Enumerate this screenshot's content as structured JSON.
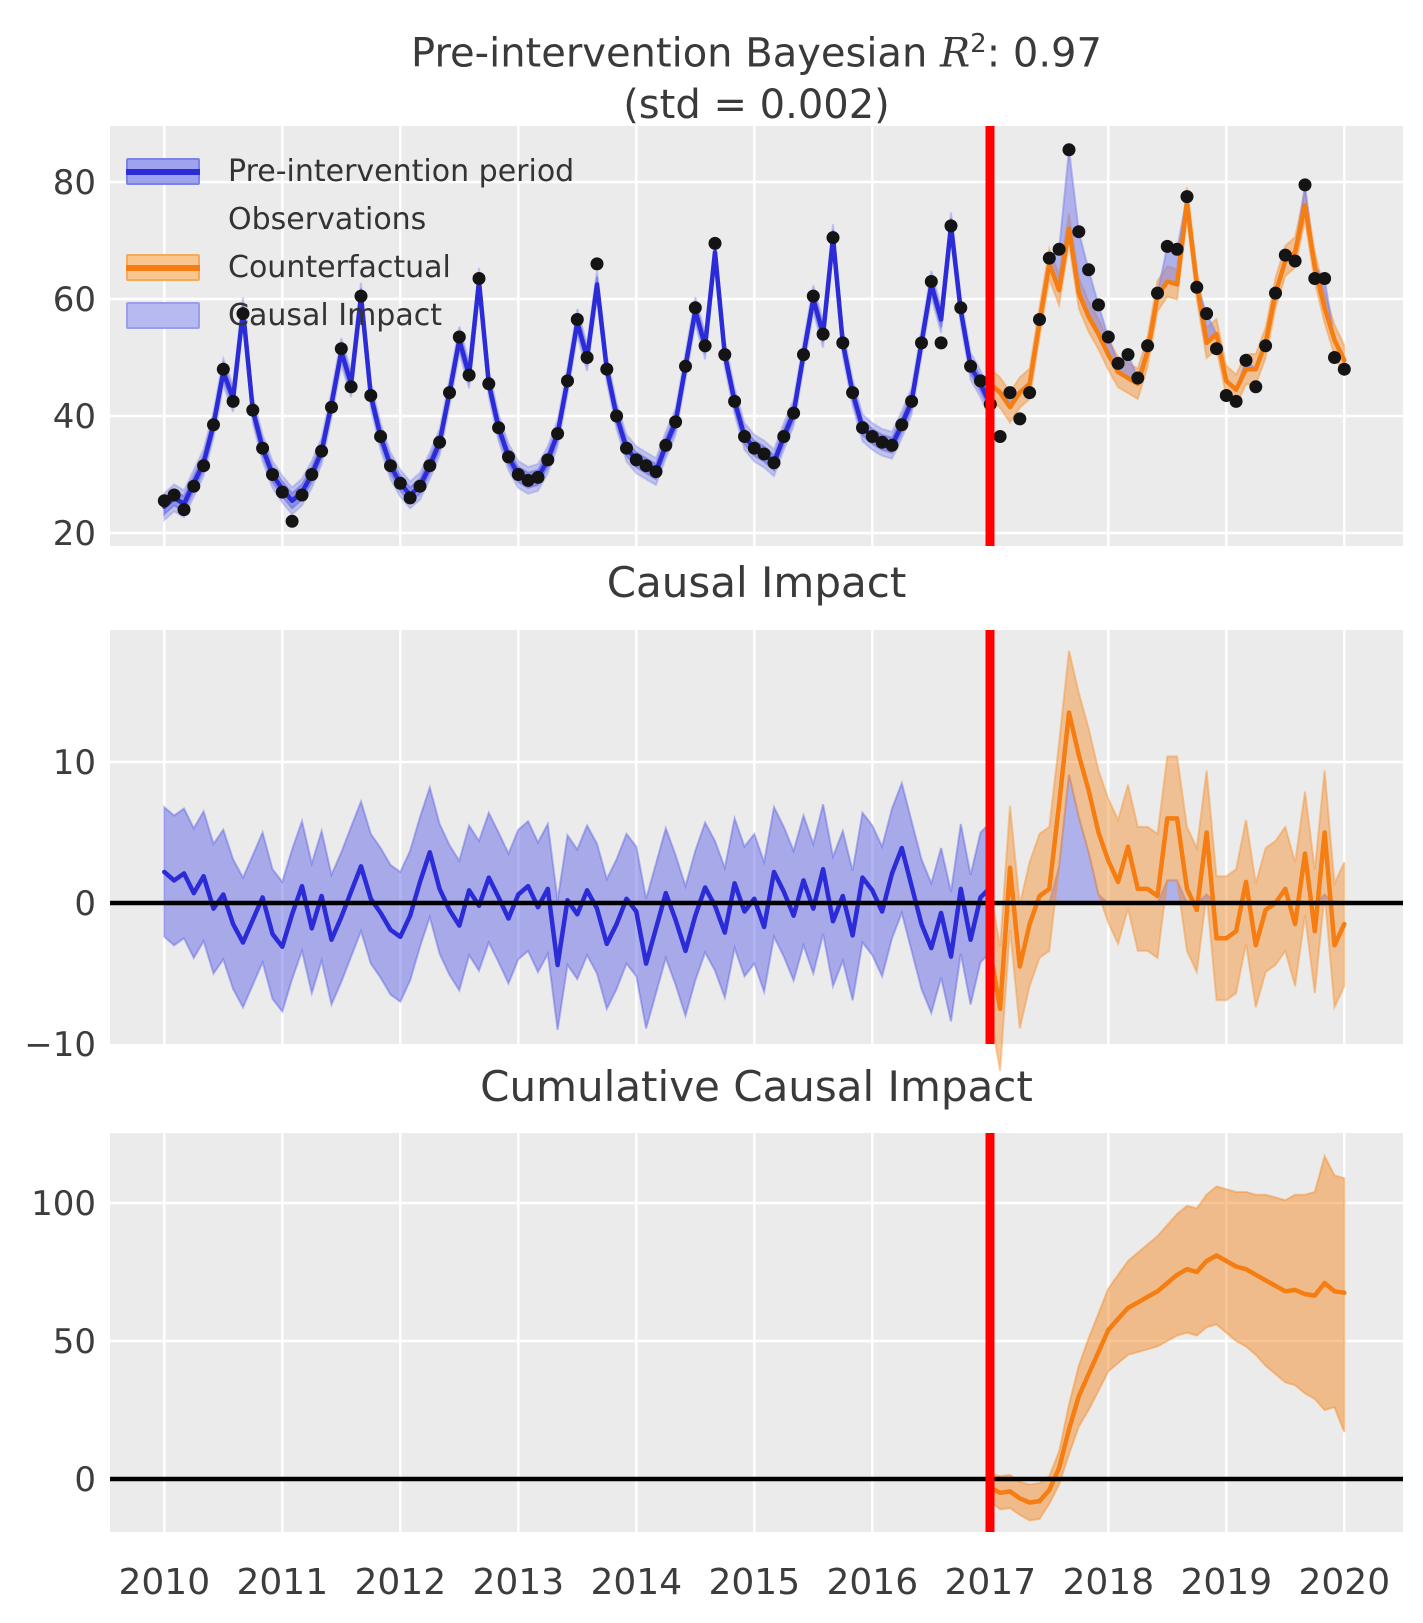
{
  "titles": {
    "top_prefix": "Pre-intervention Bayesian ",
    "top_r": "R",
    "top_exp": "2",
    "top_suffix": ": 0.97",
    "top_line2": "(std = 0.002)",
    "middle": "Causal Impact",
    "bottom": "Cumulative Causal Impact"
  },
  "legend": {
    "items": [
      {
        "label": "Pre-intervention period",
        "swatch": "blue-band-with-line"
      },
      {
        "label": "Observations",
        "swatch": "black-dot"
      },
      {
        "label": "Counterfactual",
        "swatch": "orange-band-with-line"
      },
      {
        "label": "Causal Impact",
        "swatch": "light-blue-band"
      }
    ]
  },
  "colors": {
    "background": "#ebebeb",
    "grid": "#ffffff",
    "text": "#3d3d3d",
    "blue_line": "#2b2bd8",
    "blue_band": "#5558e4",
    "light_blue_fill": "#7b82ea",
    "orange_line": "#f57d11",
    "orange_band": "#f58c2a",
    "observation_dot": "#141414",
    "intervention_line": "#ff0000",
    "zero_line": "#000000"
  },
  "x_axis": {
    "labels": [
      "2010",
      "2011",
      "2012",
      "2013",
      "2014",
      "2015",
      "2016",
      "2017",
      "2018",
      "2019",
      "2020"
    ],
    "years": [
      2010,
      2011,
      2012,
      2013,
      2014,
      2015,
      2016,
      2017,
      2018,
      2019,
      2020
    ],
    "intervention_year": 2017
  },
  "chart_data": [
    {
      "type": "line",
      "title": "Pre-intervention Bayesian R²: 0.97 (std = 0.002)",
      "x_start_year": 2010,
      "x_step_months": 1,
      "intervention_year": 2017,
      "ylim": [
        18,
        89
      ],
      "y_tick_values": [
        20,
        40,
        60,
        80
      ],
      "y_tick_labels": [
        "20",
        "40",
        "60",
        "80"
      ],
      "legend_position": "upper-left",
      "series": {
        "observations": [
          25.5,
          26.5,
          24,
          28,
          31.5,
          38.5,
          48,
          42.5,
          57.5,
          41,
          34.5,
          30,
          27,
          22,
          26.5,
          30,
          34,
          41.5,
          51.5,
          45,
          60.5,
          43.5,
          36.5,
          31.5,
          28.5,
          26,
          28,
          31.5,
          35.5,
          44,
          53.5,
          47,
          63.5,
          45.5,
          38,
          33,
          30,
          29,
          29.5,
          32.5,
          37,
          46,
          56.5,
          50,
          66,
          48,
          40,
          34.5,
          32.5,
          31.5,
          30.5,
          35,
          39,
          48.5,
          58.5,
          52,
          69.5,
          50.5,
          42.5,
          36.5,
          34.5,
          33.5,
          32,
          36.5,
          40.5,
          50.5,
          60.5,
          54,
          70.5,
          52.5,
          44,
          38,
          36.5,
          35.5,
          35,
          38.5,
          42.5,
          52.5,
          63,
          52.5,
          72.5,
          58.5,
          48.5,
          46,
          42,
          36.5,
          44,
          39.5,
          44,
          56.5,
          67,
          68.5,
          85.5,
          71.5,
          65,
          59,
          53.5,
          49,
          50.5,
          46.5,
          52,
          61,
          69,
          68.5,
          77.5,
          62,
          57.5,
          51.5,
          43.5,
          42.5,
          49.5,
          45,
          52,
          61,
          67.5,
          66.5,
          79.5,
          63.5,
          63.5,
          50,
          48
        ],
        "pre_intervention_mean": [
          24.5,
          26,
          25,
          28.5,
          32,
          38.5,
          47.5,
          43,
          58,
          41,
          34.5,
          30,
          27.5,
          25.5,
          27,
          30,
          34,
          42,
          51,
          45.5,
          60.5,
          43.5,
          36.5,
          31.5,
          28.5,
          26.5,
          28,
          31.5,
          35.5,
          44,
          53,
          47,
          63,
          45.5,
          38,
          33,
          30,
          29,
          29.5,
          32.5,
          37,
          46,
          56,
          50,
          62.5,
          48,
          40,
          34.5,
          32.5,
          31.5,
          30.5,
          35,
          39,
          48.5,
          58,
          52,
          68,
          50.5,
          42.5,
          36.5,
          34.5,
          33.5,
          32,
          36.5,
          40.5,
          50.5,
          60,
          54,
          70.5,
          52.5,
          44,
          38,
          36.5,
          35.5,
          35,
          38.5,
          42.5,
          52.5,
          62.5,
          56.5,
          72.5,
          58,
          48.5,
          45.5,
          42
        ],
        "counterfactual_mean": [
          45.5,
          44,
          41.5,
          44,
          45.5,
          56,
          66,
          61.5,
          72,
          61,
          57,
          54,
          50.5,
          47.5,
          46.5,
          45.5,
          51,
          60.5,
          63,
          62.5,
          76.5,
          62.5,
          52.5,
          54,
          46,
          44.5,
          48,
          48,
          52.5,
          61,
          66.5,
          68,
          76,
          65.5,
          58.5,
          53,
          49.5
        ]
      },
      "band_halfwidths": {
        "pre_inner": 1.3,
        "pre_outer": 2.3,
        "counterfactual": 2.6
      }
    },
    {
      "type": "line",
      "title": "Causal Impact",
      "x_start_year": 2010,
      "x_step_months": 1,
      "intervention_year": 2017,
      "ylim": [
        -10,
        19
      ],
      "y_tick_values": [
        -10,
        0,
        10
      ],
      "y_tick_labels": [
        "−10",
        "0",
        "10"
      ],
      "zero_line": true,
      "series": {
        "pre_impact": [
          2.2,
          1.6,
          2.1,
          0.7,
          1.9,
          -0.4,
          0.6,
          -1.5,
          -2.8,
          -1.2,
          0.4,
          -2.2,
          -3.1,
          -0.8,
          1.2,
          -1.8,
          0.5,
          -2.6,
          -1.0,
          0.8,
          2.6,
          0.3,
          -0.7,
          -1.9,
          -2.4,
          -0.9,
          1.5,
          3.6,
          1.0,
          -0.5,
          -1.6,
          0.9,
          -0.2,
          1.8,
          0.4,
          -1.1,
          0.6,
          1.2,
          -0.3,
          1.0,
          -4.4,
          0.2,
          -0.8,
          0.9,
          -0.4,
          -2.9,
          -1.5,
          0.3,
          -0.6,
          -4.3,
          -1.8,
          0.7,
          -1.2,
          -3.4,
          -0.9,
          1.1,
          -0.2,
          -2.1,
          1.4,
          -0.6,
          0.3,
          -1.7,
          2.2,
          0.8,
          -0.9,
          1.6,
          -0.4,
          2.4,
          -1.3,
          0.5,
          -2.3,
          1.8,
          0.9,
          -0.6,
          2.1,
          3.9,
          1.2,
          -1.5,
          -3.2,
          -0.7,
          -3.8,
          1.0,
          -2.6,
          0.4,
          1.1
        ],
        "post_impact": [
          -3.5,
          -7.5,
          2.5,
          -4.5,
          -1.5,
          0.5,
          1,
          7,
          13.5,
          10.5,
          8,
          5,
          3,
          1.5,
          4,
          1,
          1,
          0.5,
          6,
          6,
          1,
          -0.5,
          5,
          -2.5,
          -2.5,
          -2,
          1.5,
          -3,
          -0.5,
          0,
          1,
          -1.5,
          3.5,
          -2,
          5,
          -3,
          -1.5
        ]
      },
      "band_halfwidths": {
        "pre": 4.6,
        "post": 4.4
      }
    },
    {
      "type": "line",
      "title": "Cumulative Causal Impact",
      "x_start_year": 2017,
      "x_step_months": 1,
      "intervention_year": 2017,
      "ylim": [
        -19,
        125
      ],
      "y_tick_values": [
        0,
        50,
        100
      ],
      "y_tick_labels": [
        "0",
        "50",
        "100"
      ],
      "zero_line": true,
      "series": {
        "cumulative": [
          -3,
          -5,
          -4.5,
          -7,
          -8.5,
          -8,
          -4,
          4,
          18,
          30,
          38,
          46,
          54,
          58,
          62,
          64,
          66,
          68,
          71,
          74,
          76,
          75,
          79,
          81,
          79,
          77,
          76,
          74,
          72,
          70,
          68,
          68.5,
          67,
          66.5,
          71,
          68,
          67.5
        ],
        "upper": [
          2,
          1,
          1.5,
          -1,
          -2,
          -1.5,
          1,
          10,
          27,
          41,
          51,
          60,
          69,
          74,
          79,
          82,
          85,
          88,
          92,
          96,
          99,
          98,
          103,
          106,
          105,
          104,
          104,
          103,
          103,
          102,
          101,
          103,
          103,
          104,
          117,
          110,
          109
        ],
        "lower": [
          -8,
          -11,
          -10.5,
          -13,
          -15,
          -14.5,
          -9,
          -2,
          9,
          19,
          25,
          32,
          39,
          42,
          45,
          46,
          47,
          48,
          50,
          52,
          53,
          52,
          55,
          56,
          53,
          50,
          48,
          45,
          41,
          38,
          35,
          34,
          31,
          29,
          25,
          26,
          17
        ]
      }
    }
  ]
}
